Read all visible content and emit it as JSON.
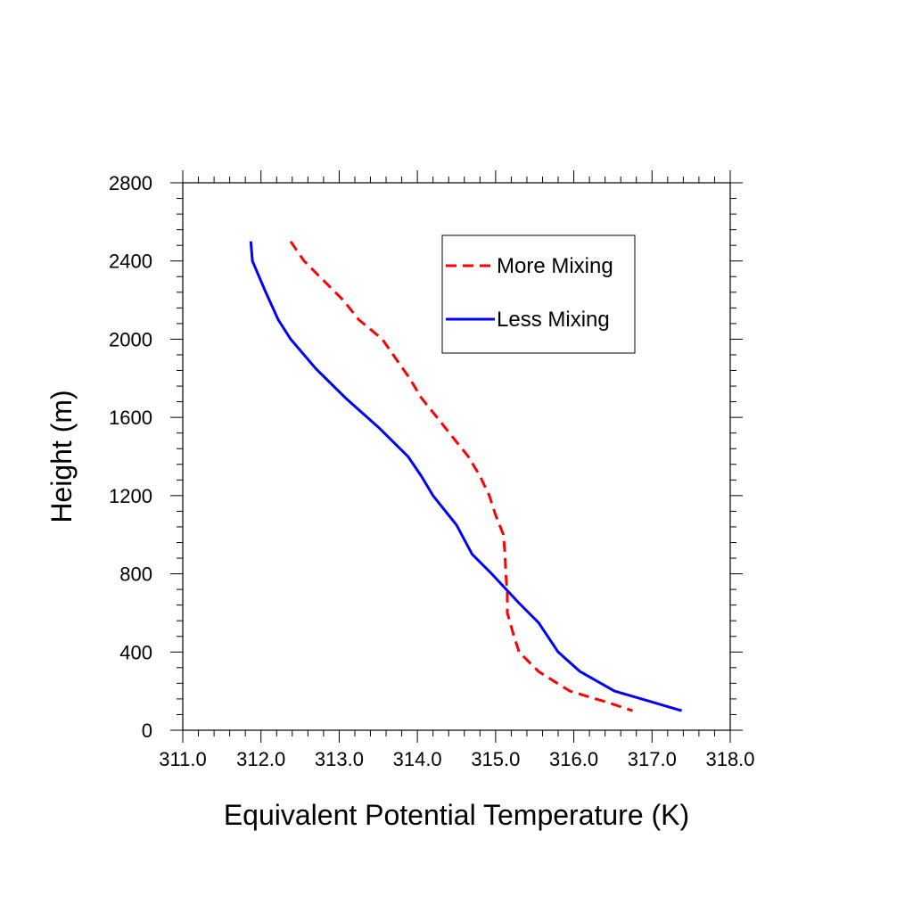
{
  "chart_data": {
    "type": "line",
    "xlabel": "Equivalent Potential Temperature (K)",
    "ylabel": "Height (m)",
    "xlim": [
      311.0,
      318.0
    ],
    "ylim": [
      0,
      2800
    ],
    "x_ticks": [
      "311.0",
      "312.0",
      "313.0",
      "314.0",
      "315.0",
      "316.0",
      "317.0",
      "318.0"
    ],
    "y_ticks": [
      "0",
      "400",
      "800",
      "1200",
      "1600",
      "2000",
      "2400",
      "2800"
    ],
    "grid": false,
    "legend_position": "top-right",
    "series": [
      {
        "name": "More Mixing",
        "color": "#ff0000",
        "dash": "dashed",
        "points": [
          [
            312.38,
            2500
          ],
          [
            312.55,
            2400
          ],
          [
            312.8,
            2300
          ],
          [
            313.05,
            2200
          ],
          [
            313.25,
            2100
          ],
          [
            313.55,
            2000
          ],
          [
            313.9,
            1800
          ],
          [
            314.05,
            1700
          ],
          [
            314.25,
            1600
          ],
          [
            314.45,
            1500
          ],
          [
            314.65,
            1400
          ],
          [
            314.8,
            1300
          ],
          [
            314.92,
            1200
          ],
          [
            315.0,
            1100
          ],
          [
            315.1,
            1000
          ],
          [
            315.12,
            900
          ],
          [
            315.13,
            800
          ],
          [
            315.15,
            700
          ],
          [
            315.15,
            600
          ],
          [
            315.22,
            500
          ],
          [
            315.3,
            400
          ],
          [
            315.55,
            300
          ],
          [
            315.75,
            250
          ],
          [
            315.95,
            200
          ],
          [
            316.2,
            170
          ],
          [
            316.45,
            140
          ],
          [
            316.75,
            100
          ]
        ]
      },
      {
        "name": "Less Mixing",
        "color": "#0000ff",
        "dash": "solid",
        "points": [
          [
            311.87,
            2500
          ],
          [
            311.89,
            2400
          ],
          [
            312.05,
            2250
          ],
          [
            312.22,
            2100
          ],
          [
            312.38,
            2000
          ],
          [
            312.7,
            1850
          ],
          [
            313.08,
            1700
          ],
          [
            313.5,
            1550
          ],
          [
            313.88,
            1400
          ],
          [
            314.05,
            1300
          ],
          [
            314.2,
            1200
          ],
          [
            314.5,
            1050
          ],
          [
            314.7,
            900
          ],
          [
            314.95,
            800
          ],
          [
            315.3,
            650
          ],
          [
            315.55,
            550
          ],
          [
            315.8,
            400
          ],
          [
            316.08,
            300
          ],
          [
            316.52,
            200
          ],
          [
            316.95,
            150
          ],
          [
            317.38,
            100
          ]
        ]
      }
    ]
  }
}
